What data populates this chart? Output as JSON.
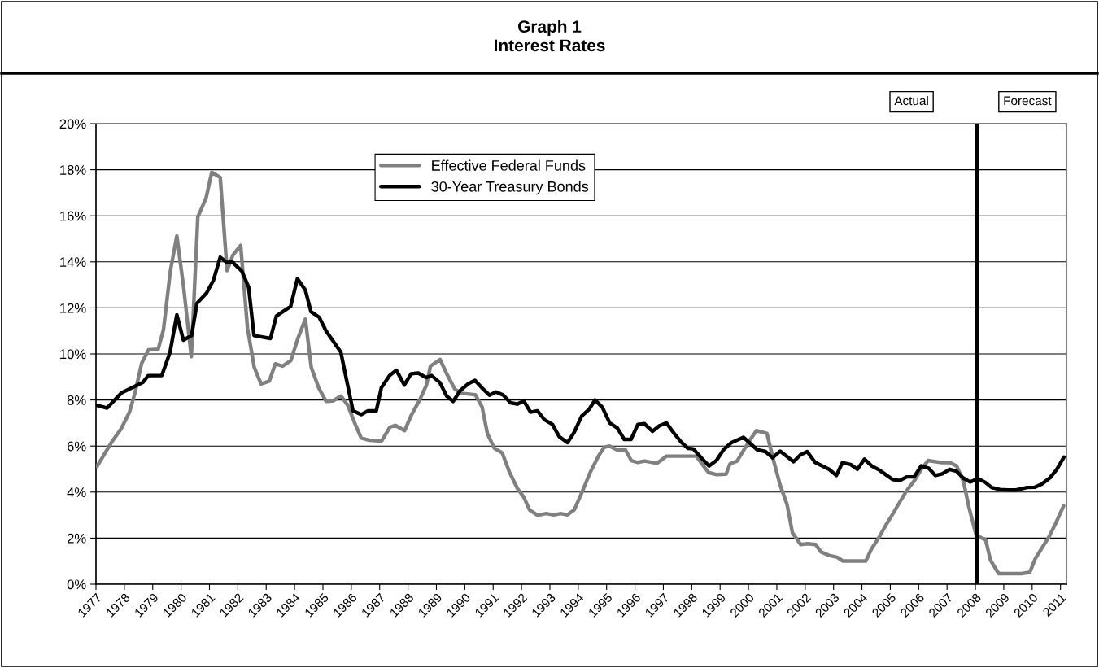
{
  "chart_data": {
    "type": "line",
    "title": "Graph 1\nInterest Rates",
    "annotations": [
      "Actual",
      "Forecast"
    ],
    "xlim": [
      1977,
      2011.21
    ],
    "xticks": [
      1977,
      1978,
      1979,
      1980,
      1981,
      1982,
      1983,
      1984,
      1985,
      1986,
      1987,
      1988,
      1989,
      1990,
      1991,
      1992,
      1993,
      1994,
      1995,
      1996,
      1997,
      1998,
      1999,
      2000,
      2001,
      2002,
      2003,
      2004,
      2005,
      2006,
      2007,
      2008,
      2009,
      2010,
      2011
    ],
    "ylim": [
      0,
      20
    ],
    "yticks": [
      {
        "value": 0,
        "label": "0%"
      },
      {
        "value": 2,
        "label": "2%"
      },
      {
        "value": 4,
        "label": "4%"
      },
      {
        "value": 6,
        "label": "6%"
      },
      {
        "value": 8,
        "label": "8%"
      },
      {
        "value": 10,
        "label": "10%"
      },
      {
        "value": 12,
        "label": "12%"
      },
      {
        "value": 14,
        "label": "14%"
      },
      {
        "value": 16,
        "label": "16%"
      },
      {
        "value": 18,
        "label": "18%"
      },
      {
        "value": 20,
        "label": "20%"
      }
    ],
    "grid": "y",
    "legend": "top",
    "marker": "none",
    "line_style": "solid",
    "ref_lines": [
      {
        "axis": "x",
        "value": 2008.05,
        "color": "#000000"
      }
    ],
    "series": [
      {
        "name": "Effective Federal Funds",
        "color": "#808080",
        "x": [
          1977.04,
          1977.52,
          1977.89,
          1978.18,
          1978.37,
          1978.61,
          1978.85,
          1979.19,
          1979.38,
          1979.62,
          1979.85,
          1980.09,
          1980.36,
          1980.59,
          1980.88,
          1981.08,
          1981.38,
          1981.62,
          1981.83,
          1982.1,
          1982.34,
          1982.58,
          1982.82,
          1983.11,
          1983.32,
          1983.58,
          1983.87,
          1984.11,
          1984.38,
          1984.59,
          1984.85,
          1985.11,
          1985.35,
          1985.64,
          1985.88,
          1986.12,
          1986.35,
          1986.64,
          1987.07,
          1987.36,
          1987.55,
          1987.88,
          1988.12,
          1988.41,
          1988.65,
          1988.79,
          1989.13,
          1989.37,
          1989.65,
          1989.89,
          1990.37,
          1990.61,
          1990.8,
          1991.04,
          1991.32,
          1991.57,
          1991.85,
          1992.09,
          1992.28,
          1992.57,
          1992.86,
          1993.14,
          1993.38,
          1993.62,
          1993.86,
          1994.15,
          1994.43,
          1994.72,
          1994.91,
          1995.1,
          1995.39,
          1995.67,
          1995.87,
          1996.1,
          1996.34,
          1996.77,
          1997.11,
          1997.68,
          1998.16,
          1998.59,
          1998.88,
          1999.21,
          1999.35,
          1999.6,
          1999.83,
          2000.07,
          2000.28,
          2000.65,
          2000.89,
          2001.12,
          2001.36,
          2001.55,
          2001.84,
          2002.08,
          2002.37,
          2002.56,
          2002.84,
          2003.13,
          2003.32,
          2004.14,
          2004.33,
          2004.61,
          2004.85,
          2005.09,
          2005.33,
          2005.57,
          2005.86,
          2006.09,
          2006.33,
          2006.81,
          2007.1,
          2007.34,
          2007.58,
          2007.77,
          2008.03,
          2008.36,
          2008.53,
          2008.82,
          2009.63,
          2009.92,
          2010.11,
          2010.35,
          2010.59,
          2010.83,
          2011.11
        ],
        "values": [
          5.12,
          6.11,
          6.76,
          7.47,
          8.29,
          9.59,
          10.18,
          10.2,
          11.06,
          13.59,
          15.12,
          12.89,
          9.88,
          15.95,
          16.77,
          17.89,
          17.66,
          13.62,
          14.3,
          14.71,
          11.12,
          9.41,
          8.7,
          8.82,
          9.57,
          9.47,
          9.71,
          10.65,
          11.51,
          9.41,
          8.53,
          7.94,
          7.96,
          8.17,
          7.76,
          7.0,
          6.35,
          6.25,
          6.22,
          6.82,
          6.9,
          6.67,
          7.35,
          8.0,
          8.65,
          9.47,
          9.76,
          9.12,
          8.47,
          8.29,
          8.23,
          7.7,
          6.53,
          5.91,
          5.7,
          4.88,
          4.17,
          3.76,
          3.23,
          2.99,
          3.07,
          3.01,
          3.07,
          3.01,
          3.23,
          4.05,
          4.88,
          5.58,
          5.94,
          6.0,
          5.82,
          5.82,
          5.37,
          5.29,
          5.35,
          5.25,
          5.56,
          5.56,
          5.56,
          4.85,
          4.76,
          4.78,
          5.23,
          5.35,
          5.82,
          6.29,
          6.67,
          6.55,
          5.35,
          4.29,
          3.46,
          2.23,
          1.72,
          1.76,
          1.72,
          1.4,
          1.25,
          1.17,
          1.01,
          1.01,
          1.52,
          2.05,
          2.58,
          3.05,
          3.56,
          4.05,
          4.52,
          4.99,
          5.37,
          5.28,
          5.28,
          5.13,
          4.46,
          3.35,
          2.11,
          1.93,
          1.05,
          0.46,
          0.46,
          0.52,
          1.11,
          1.58,
          2.05,
          2.64,
          3.4
        ]
      },
      {
        "name": "30-Year Treasury Bonds",
        "color": "#000000",
        "x": [
          1977.05,
          1977.39,
          1977.89,
          1978.65,
          1978.84,
          1979.32,
          1979.61,
          1979.85,
          1980.08,
          1980.37,
          1980.56,
          1980.9,
          1981.14,
          1981.38,
          1981.62,
          1981.8,
          1982.14,
          1982.38,
          1982.57,
          1983.15,
          1983.36,
          1983.86,
          1984.1,
          1984.38,
          1984.58,
          1984.87,
          1985.11,
          1985.63,
          1985.87,
          1986.06,
          1986.35,
          1986.59,
          1986.88,
          1987.06,
          1987.35,
          1987.59,
          1987.87,
          1988.11,
          1988.36,
          1988.64,
          1988.83,
          1989.12,
          1989.36,
          1989.59,
          1989.84,
          1990.13,
          1990.36,
          1990.6,
          1990.87,
          1991.1,
          1991.36,
          1991.61,
          1991.85,
          1992.08,
          1992.32,
          1992.56,
          1992.81,
          1993.09,
          1993.33,
          1993.62,
          1993.85,
          1994.12,
          1994.38,
          1994.59,
          1994.85,
          1995.11,
          1995.38,
          1995.62,
          1995.86,
          1996.1,
          1996.33,
          1996.62,
          1996.86,
          1997.11,
          1997.39,
          1997.63,
          1997.87,
          1998.05,
          1998.34,
          1998.61,
          1998.87,
          1999.12,
          1999.4,
          1999.82,
          2000.31,
          2000.6,
          2000.85,
          2001.12,
          2001.59,
          2001.83,
          2002.07,
          2002.35,
          2002.84,
          2003.1,
          2003.31,
          2003.6,
          2003.84,
          2004.09,
          2004.35,
          2004.61,
          2004.85,
          2005.08,
          2005.32,
          2005.59,
          2005.84,
          2006.09,
          2006.36,
          2006.59,
          2006.83,
          2007.09,
          2007.33,
          2007.57,
          2007.81,
          2008.1,
          2008.34,
          2008.57,
          2008.86,
          2009.15,
          2009.43,
          2009.82,
          2010.1,
          2010.34,
          2010.63,
          2010.87,
          2011.12
        ],
        "values": [
          7.76,
          7.65,
          8.3,
          8.76,
          9.06,
          9.06,
          10.07,
          11.7,
          10.6,
          10.8,
          12.2,
          12.65,
          13.2,
          14.2,
          13.97,
          14.0,
          13.6,
          12.9,
          10.8,
          10.67,
          11.65,
          12.06,
          13.27,
          12.77,
          11.83,
          11.59,
          11.0,
          10.08,
          8.65,
          7.53,
          7.37,
          7.53,
          7.53,
          8.53,
          9.06,
          9.29,
          8.65,
          9.14,
          9.17,
          8.97,
          9.06,
          8.76,
          8.17,
          7.94,
          8.41,
          8.71,
          8.85,
          8.53,
          8.21,
          8.35,
          8.21,
          7.88,
          7.82,
          7.96,
          7.47,
          7.53,
          7.14,
          6.94,
          6.41,
          6.15,
          6.58,
          7.3,
          7.59,
          8.0,
          7.68,
          7.0,
          6.78,
          6.29,
          6.29,
          6.94,
          6.97,
          6.64,
          6.88,
          7.0,
          6.53,
          6.17,
          5.9,
          5.88,
          5.49,
          5.13,
          5.37,
          5.84,
          6.15,
          6.38,
          5.84,
          5.76,
          5.49,
          5.78,
          5.32,
          5.62,
          5.76,
          5.29,
          4.99,
          4.72,
          5.28,
          5.2,
          4.99,
          5.43,
          5.13,
          4.96,
          4.75,
          4.55,
          4.5,
          4.66,
          4.66,
          5.14,
          5.03,
          4.72,
          4.79,
          4.99,
          4.91,
          4.61,
          4.44,
          4.58,
          4.43,
          4.2,
          4.11,
          4.09,
          4.09,
          4.2,
          4.21,
          4.35,
          4.62,
          4.99,
          5.52
        ]
      }
    ]
  }
}
